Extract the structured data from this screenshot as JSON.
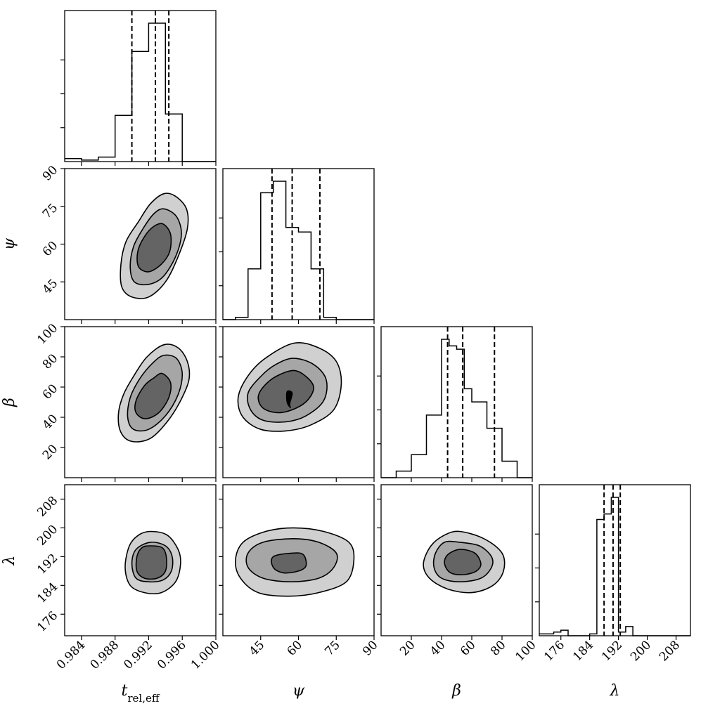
{
  "chart_data": {
    "type": "corner",
    "parameters": [
      {
        "key": "trel",
        "label": "t",
        "label_sub": "rel,eff",
        "range": [
          0.982,
          1.0
        ],
        "ticks": [
          0.984,
          0.988,
          0.992,
          0.996,
          1.0
        ],
        "tick_labels": [
          "0.984",
          "0.988",
          "0.992",
          "0.996",
          "1.000"
        ],
        "quantiles": [
          0.99,
          0.9928,
          0.9944
        ]
      },
      {
        "key": "psi",
        "label": "ψ",
        "range": [
          30,
          90
        ],
        "ticks": [
          45,
          60,
          75,
          90
        ],
        "tick_labels": [
          "45",
          "60",
          "75",
          "90"
        ],
        "quantiles": [
          49.5,
          57.5,
          68.5
        ]
      },
      {
        "key": "beta",
        "label": "β",
        "range": [
          0,
          100
        ],
        "ticks": [
          20,
          40,
          60,
          80,
          100
        ],
        "tick_labels": [
          "20",
          "40",
          "60",
          "80",
          "100"
        ],
        "quantiles": [
          44,
          54,
          75
        ]
      },
      {
        "key": "lambda",
        "label": "λ",
        "range": [
          170,
          212
        ],
        "ticks": [
          176,
          184,
          192,
          200,
          208
        ],
        "tick_labels": [
          "176",
          "184",
          "192",
          "200",
          "208"
        ],
        "quantiles": [
          188,
          190.5,
          192.5
        ]
      }
    ],
    "histograms": [
      {
        "param": "trel",
        "bin_edges": [
          0.982,
          0.984,
          0.986,
          0.988,
          0.99,
          0.992,
          0.994,
          0.996,
          0.998,
          1.0
        ],
        "counts": [
          0.02,
          0.01,
          0.03,
          0.31,
          0.74,
          0.93,
          0.32,
          0.0,
          0.0
        ]
      },
      {
        "param": "psi",
        "bin_edges": [
          30,
          35,
          40,
          45,
          50,
          55,
          60,
          65,
          70,
          75,
          80,
          85,
          90
        ],
        "counts": [
          0.0,
          0.01,
          0.22,
          0.55,
          0.6,
          0.4,
          0.38,
          0.22,
          0.01,
          0.0,
          0.0,
          0.0
        ]
      },
      {
        "param": "beta",
        "bin_edges": [
          0,
          10,
          20,
          30,
          40,
          45,
          50,
          55,
          60,
          70,
          75,
          80,
          90,
          100
        ],
        "counts": [
          0.0,
          0.02,
          0.07,
          0.19,
          0.42,
          0.4,
          0.39,
          0.27,
          0.23,
          0.15,
          0.15,
          0.05,
          0.0
        ]
      },
      {
        "param": "lambda",
        "bin_edges": [
          170,
          174,
          176,
          178,
          180,
          184,
          186,
          188,
          190,
          192,
          194,
          196,
          200,
          212
        ],
        "counts": [
          0.01,
          0.02,
          0.03,
          0.0,
          0.0,
          0.01,
          0.63,
          0.66,
          0.75,
          0.02,
          0.05,
          0.0,
          0.0
        ]
      }
    ],
    "contours_2d": [
      {
        "x": "trel",
        "y": "psi",
        "levels": [
          [
            [
              0.9938,
              80
            ],
            [
              0.9952,
              79
            ],
            [
              0.9965,
              74
            ],
            [
              0.9966,
              66
            ],
            [
              0.9955,
              55
            ],
            [
              0.994,
              45
            ],
            [
              0.992,
              39
            ],
            [
              0.99,
              39
            ],
            [
              0.9888,
              43
            ],
            [
              0.9887,
              52
            ],
            [
              0.9893,
              61
            ],
            [
              0.9908,
              69
            ],
            [
              0.9922,
              76
            ]
          ],
          [
            [
              0.9938,
              74
            ],
            [
              0.9953,
              71
            ],
            [
              0.9959,
              64
            ],
            [
              0.9952,
              55
            ],
            [
              0.9937,
              47
            ],
            [
              0.992,
              44
            ],
            [
              0.9903,
              45
            ],
            [
              0.9898,
              51
            ],
            [
              0.9902,
              59
            ],
            [
              0.9913,
              66
            ],
            [
              0.9926,
              72
            ]
          ],
          [
            [
              0.9937,
              68
            ],
            [
              0.9946,
              64
            ],
            [
              0.9945,
              57
            ],
            [
              0.9935,
              52
            ],
            [
              0.992,
              49
            ],
            [
              0.9908,
              51
            ],
            [
              0.9907,
              57
            ],
            [
              0.9915,
              63
            ],
            [
              0.9926,
              67
            ]
          ]
        ]
      },
      {
        "x": "psi",
        "y": "beta",
        "levels": [
          [
            [
              58,
              89
            ],
            [
              68,
              86
            ],
            [
              75,
              77
            ],
            [
              77,
              62
            ],
            [
              74,
              45
            ],
            [
              65,
              35
            ],
            [
              55,
              31
            ],
            [
              45,
              32
            ],
            [
              38,
              40
            ],
            [
              36,
              52
            ],
            [
              39,
              65
            ],
            [
              46,
              78
            ]
          ],
          [
            [
              58,
              79
            ],
            [
              66,
              75
            ],
            [
              71,
              65
            ],
            [
              70,
              51
            ],
            [
              63,
              41
            ],
            [
              55,
              37
            ],
            [
              46,
              38
            ],
            [
              41,
              45
            ],
            [
              40,
              56
            ],
            [
              45,
              67
            ],
            [
              51,
              75
            ]
          ],
          [
            [
              58,
              71
            ],
            [
              63,
              67
            ],
            [
              66,
              60
            ],
            [
              64,
              52
            ],
            [
              59,
              46
            ],
            [
              52,
              43
            ],
            [
              46,
              46
            ],
            [
              44,
              53
            ],
            [
              46,
              60
            ],
            [
              51,
              67
            ]
          ],
          [
            [
              55.5,
              57
            ],
            [
              57.5,
              56
            ],
            [
              56.5,
              49
            ],
            [
              56.8,
              46.5
            ],
            [
              55.5,
              50
            ]
          ]
        ]
      },
      {
        "x": "trel",
        "y": "beta",
        "levels": [
          [
            [
              0.9938,
              88
            ],
            [
              0.9955,
              86
            ],
            [
              0.9966,
              77
            ],
            [
              0.9968,
              65
            ],
            [
              0.9958,
              51
            ],
            [
              0.9942,
              37
            ],
            [
              0.9922,
              26
            ],
            [
              0.99,
              24
            ],
            [
              0.9887,
              30
            ],
            [
              0.9884,
              42
            ],
            [
              0.989,
              55
            ],
            [
              0.9903,
              68
            ],
            [
              0.9918,
              80
            ]
          ],
          [
            [
              0.9938,
              81
            ],
            [
              0.9953,
              79
            ],
            [
              0.996,
              69
            ],
            [
              0.9955,
              55
            ],
            [
              0.994,
              41
            ],
            [
              0.992,
              32
            ],
            [
              0.9902,
              32
            ],
            [
              0.9895,
              40
            ],
            [
              0.9898,
              53
            ],
            [
              0.991,
              66
            ],
            [
              0.9925,
              76
            ]
          ],
          [
            [
              0.9936,
              69
            ],
            [
              0.9946,
              63
            ],
            [
              0.9944,
              53
            ],
            [
              0.9932,
              43
            ],
            [
              0.9916,
              39
            ],
            [
              0.9905,
              43
            ],
            [
              0.9905,
              51
            ],
            [
              0.9915,
              61
            ],
            [
              0.9926,
              66
            ]
          ]
        ]
      },
      {
        "x": "trel",
        "y": "lambda",
        "levels": [
          [
            [
              0.9922,
              199
            ],
            [
              0.9942,
              198
            ],
            [
              0.9955,
              194
            ],
            [
              0.9958,
              190
            ],
            [
              0.9952,
              185
            ],
            [
              0.9935,
              182
            ],
            [
              0.9915,
              182
            ],
            [
              0.9898,
              184
            ],
            [
              0.9892,
              189
            ],
            [
              0.9897,
              195
            ],
            [
              0.9908,
              198
            ]
          ],
          [
            [
              0.9922,
              196
            ],
            [
              0.994,
              195
            ],
            [
              0.9948,
              192
            ],
            [
              0.9947,
              188
            ],
            [
              0.9937,
              185.5
            ],
            [
              0.992,
              185
            ],
            [
              0.9905,
              186
            ],
            [
              0.99,
              190
            ],
            [
              0.9905,
              194
            ]
          ],
          [
            [
              0.9922,
              195
            ],
            [
              0.9936,
              194.5
            ],
            [
              0.9941,
              192
            ],
            [
              0.994,
              188
            ],
            [
              0.993,
              186
            ],
            [
              0.9915,
              186
            ],
            [
              0.9906,
              188
            ],
            [
              0.9906,
              192
            ],
            [
              0.9912,
              194.5
            ]
          ]
        ]
      },
      {
        "x": "psi",
        "y": "lambda",
        "levels": [
          [
            [
              58,
              200
            ],
            [
              70,
              199
            ],
            [
              80,
              196
            ],
            [
              82,
              191
            ],
            [
              79,
              185
            ],
            [
              68,
              182
            ],
            [
              56,
              181
            ],
            [
              44,
              182
            ],
            [
              37,
              186
            ],
            [
              35,
              191
            ],
            [
              38,
              196
            ],
            [
              47,
              199
            ]
          ],
          [
            [
              58,
              197
            ],
            [
              68,
              196
            ],
            [
              75,
              193
            ],
            [
              74,
              189
            ],
            [
              68,
              186
            ],
            [
              57,
              185
            ],
            [
              46,
              186
            ],
            [
              40,
              189
            ],
            [
              40,
              193
            ],
            [
              46,
              196
            ]
          ],
          [
            [
              58,
              193
            ],
            [
              62,
              192.5
            ],
            [
              63,
              189.5
            ],
            [
              60,
              188
            ],
            [
              54,
              187.5
            ],
            [
              50,
              189
            ],
            [
              50,
              192
            ]
          ]
        ]
      },
      {
        "x": "beta",
        "y": "lambda",
        "levels": [
          [
            [
              52,
              199
            ],
            [
              68,
              197
            ],
            [
              80,
              193
            ],
            [
              81,
              188
            ],
            [
              74,
              184
            ],
            [
              60,
              182
            ],
            [
              44,
              183
            ],
            [
              32,
              186
            ],
            [
              28,
              190
            ],
            [
              33,
              195
            ],
            [
              42,
              198
            ]
          ],
          [
            [
              52,
              196
            ],
            [
              65,
              195
            ],
            [
              73,
              192
            ],
            [
              73,
              189
            ],
            [
              66,
              186
            ],
            [
              52,
              185
            ],
            [
              40,
              186
            ],
            [
              35,
              189
            ],
            [
              36,
              193
            ],
            [
              42,
              196
            ]
          ],
          [
            [
              52,
              194
            ],
            [
              62,
              193
            ],
            [
              66,
              190
            ],
            [
              63,
              188
            ],
            [
              55,
              187
            ],
            [
              46,
              187.5
            ],
            [
              42,
              190
            ],
            [
              44,
              192.5
            ]
          ]
        ]
      }
    ],
    "fill_colors": [
      "#d0d0d0",
      "#a6a6a6",
      "#646464",
      "#000000"
    ]
  }
}
